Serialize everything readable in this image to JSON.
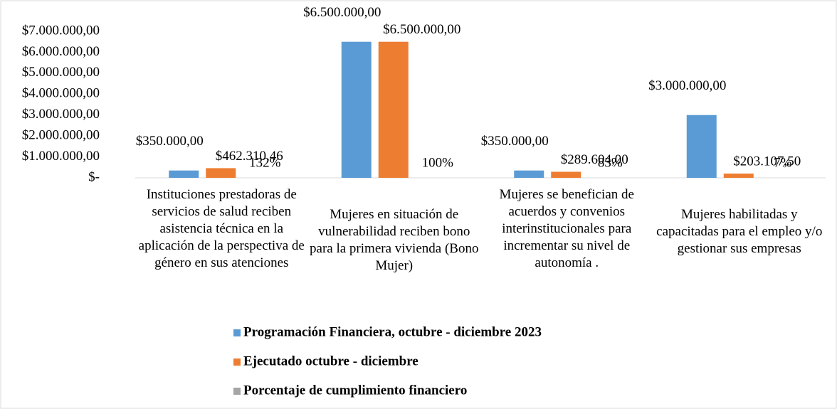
{
  "chart_data": {
    "type": "bar",
    "categories": [
      "Instituciones prestadoras de servicios de salud reciben asistencia técnica en la aplicación de la perspectiva de género en sus atenciones",
      "Mujeres en situación de vulnerabilidad reciben bono para la primera vivienda (Bono Mujer)",
      "Mujeres se benefician de acuerdos y convenios interinstitucionales para incrementar su nivel de autonomía .",
      "Mujeres habilitadas y capacitadas para el empleo y/o gestionar sus empresas"
    ],
    "series": [
      {
        "name": "Programación Financiera, octubre - diciembre 2023",
        "color": "#5b9bd5",
        "values": [
          350000,
          6500000,
          350000,
          3000000
        ],
        "value_labels": [
          "$350.000,00",
          "$6.500.000,00",
          "$350.000,00",
          "$3.000.000,00"
        ]
      },
      {
        "name": "Ejecutado octubre - diciembre",
        "color": "#ed7d31",
        "values": [
          462310.46,
          6500000,
          289604,
          203107.5
        ],
        "value_labels": [
          "$462.310,46",
          "$6.500.000,00",
          "$289.604,00",
          "$203.107,50"
        ]
      },
      {
        "name": "Porcentaje de cumplimiento financiero",
        "color": "#a5a5a5",
        "values": [
          132,
          100,
          83,
          7
        ],
        "value_labels": [
          "132%",
          "100%",
          "83%",
          "7%"
        ]
      }
    ],
    "ylim": [
      0,
      7000000
    ],
    "yticks": [
      {
        "value": 0,
        "label": "$-"
      },
      {
        "value": 1000000,
        "label": "$1.000.000,00"
      },
      {
        "value": 2000000,
        "label": "$2.000.000,00"
      },
      {
        "value": 3000000,
        "label": "$3.000.000,00"
      },
      {
        "value": 4000000,
        "label": "$4.000.000,00"
      },
      {
        "value": 5000000,
        "label": "$5.000.000,00"
      },
      {
        "value": 6000000,
        "label": "$6.000.000,00"
      },
      {
        "value": 7000000,
        "label": "$7.000.000,00"
      }
    ],
    "legend": "bottom"
  }
}
